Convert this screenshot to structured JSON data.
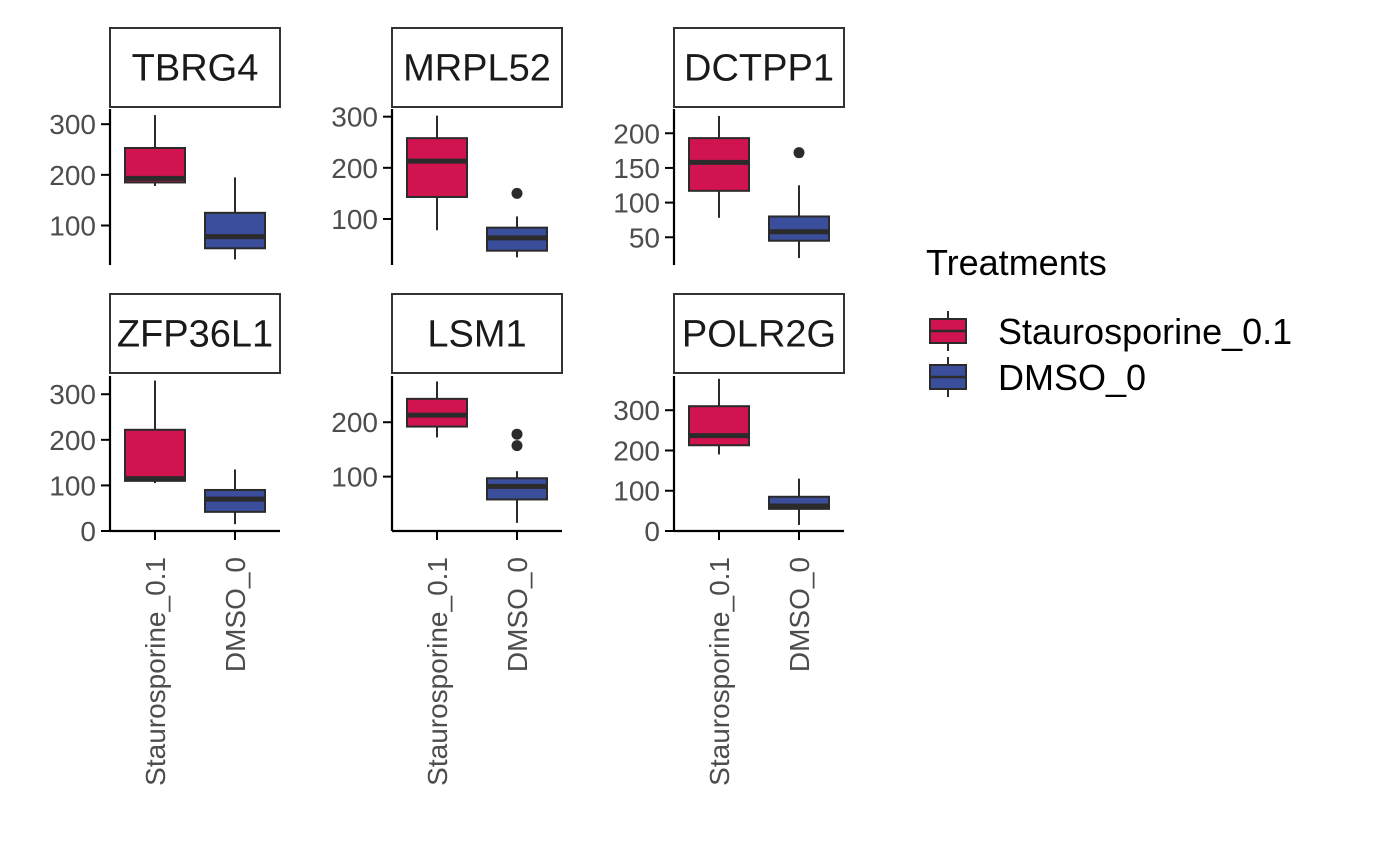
{
  "chart_data": {
    "type": "box",
    "facet_layout": "2 rows x 3 columns",
    "y_scales": "free",
    "categories": [
      "Staurosporine_0.1",
      "DMSO_0"
    ],
    "colors": {
      "Staurosporine_0.1": "#D1144F",
      "DMSO_0": "#3A4E9C"
    },
    "legend": {
      "title": "Treatments",
      "position": "right",
      "items": [
        {
          "label": "Staurosporine_0.1",
          "color": "#D1144F"
        },
        {
          "label": "DMSO_0",
          "color": "#3A4E9C"
        }
      ]
    },
    "facets": [
      {
        "title": "TBRG4",
        "ylim": [
          22,
          330
        ],
        "yticks": [
          100,
          200,
          300
        ],
        "boxes": [
          {
            "category": "Staurosporine_0.1",
            "whisker_low": 178,
            "q1": 185,
            "median": 193,
            "q3": 253,
            "whisker_high": 318,
            "outliers": []
          },
          {
            "category": "DMSO_0",
            "whisker_low": 33,
            "q1": 55,
            "median": 78,
            "q3": 125,
            "whisker_high": 195,
            "outliers": []
          }
        ]
      },
      {
        "title": "MRPL52",
        "ylim": [
          10,
          315
        ],
        "yticks": [
          100,
          200,
          300
        ],
        "boxes": [
          {
            "category": "Staurosporine_0.1",
            "whisker_low": 78,
            "q1": 143,
            "median": 213,
            "q3": 258,
            "whisker_high": 302,
            "outliers": []
          },
          {
            "category": "DMSO_0",
            "whisker_low": 25,
            "q1": 38,
            "median": 63,
            "q3": 83,
            "whisker_high": 105,
            "outliers": [
              150
            ]
          }
        ]
      },
      {
        "title": "DCTPP1",
        "ylim": [
          10,
          235
        ],
        "yticks": [
          50,
          100,
          150,
          200
        ],
        "boxes": [
          {
            "category": "Staurosporine_0.1",
            "whisker_low": 78,
            "q1": 117,
            "median": 158,
            "q3": 193,
            "whisker_high": 225,
            "outliers": []
          },
          {
            "category": "DMSO_0",
            "whisker_low": 20,
            "q1": 45,
            "median": 58,
            "q3": 80,
            "whisker_high": 125,
            "outliers": [
              172
            ]
          }
        ]
      },
      {
        "title": "ZFP36L1",
        "ylim": [
          0,
          340
        ],
        "yticks": [
          0,
          100,
          200,
          300
        ],
        "boxes": [
          {
            "category": "Staurosporine_0.1",
            "whisker_low": 105,
            "q1": 110,
            "median": 115,
            "q3": 222,
            "whisker_high": 330,
            "outliers": []
          },
          {
            "category": "DMSO_0",
            "whisker_low": 15,
            "q1": 42,
            "median": 70,
            "q3": 90,
            "whisker_high": 135,
            "outliers": []
          }
        ]
      },
      {
        "title": "LSM1",
        "ylim": [
          0,
          285
        ],
        "yticks": [
          100,
          200
        ],
        "boxes": [
          {
            "category": "Staurosporine_0.1",
            "whisker_low": 172,
            "q1": 192,
            "median": 213,
            "q3": 243,
            "whisker_high": 275,
            "outliers": []
          },
          {
            "category": "DMSO_0",
            "whisker_low": 15,
            "q1": 58,
            "median": 82,
            "q3": 97,
            "whisker_high": 110,
            "outliers": [
              157,
              178
            ]
          }
        ]
      },
      {
        "title": "POLR2G",
        "ylim": [
          0,
          385
        ],
        "yticks": [
          0,
          100,
          200,
          300
        ],
        "boxes": [
          {
            "category": "Staurosporine_0.1",
            "whisker_low": 190,
            "q1": 213,
            "median": 237,
            "q3": 310,
            "whisker_high": 378,
            "outliers": []
          },
          {
            "category": "DMSO_0",
            "whisker_low": 15,
            "q1": 55,
            "median": 62,
            "q3": 85,
            "whisker_high": 130,
            "outliers": []
          }
        ]
      }
    ]
  }
}
